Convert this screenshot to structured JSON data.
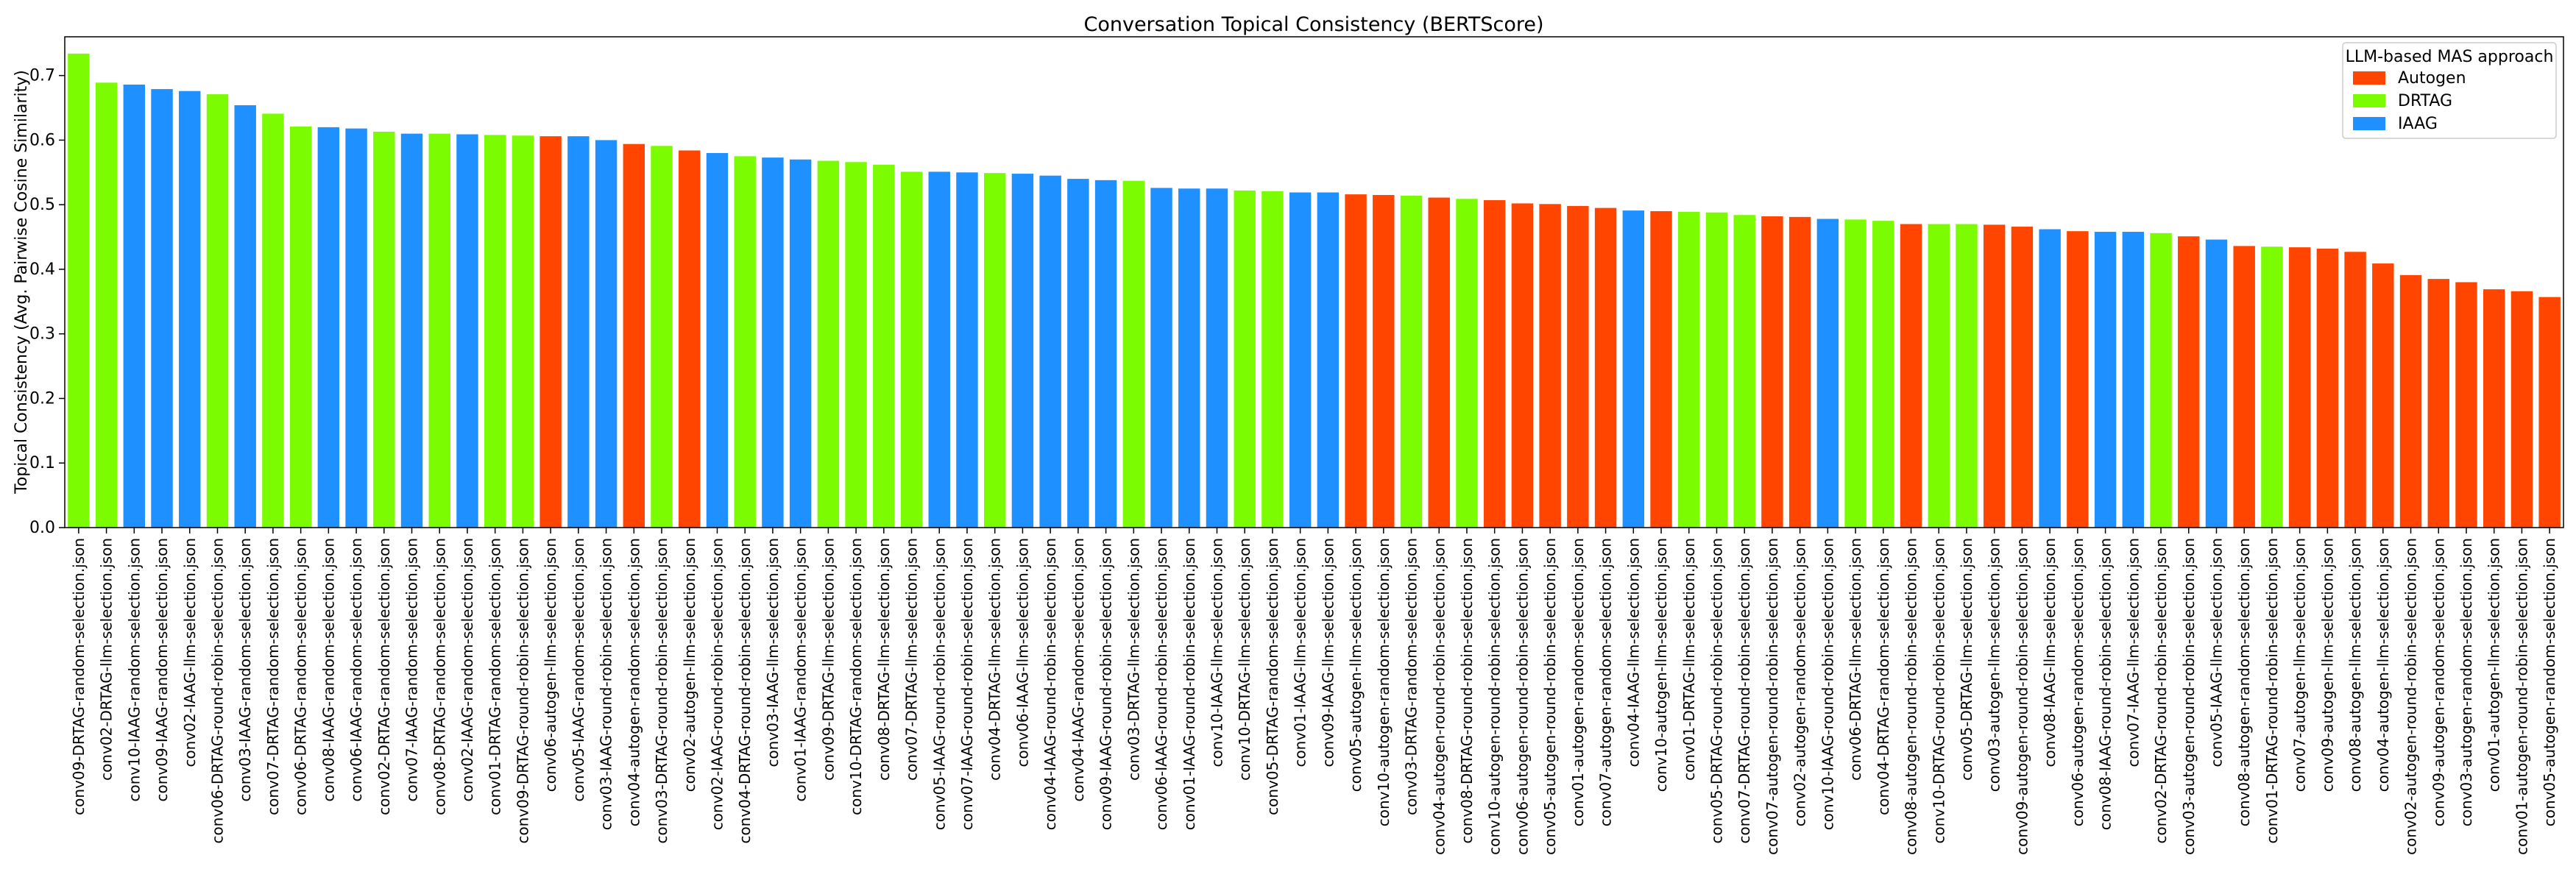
{
  "chart_data": {
    "type": "bar",
    "title": "Conversation Topical Consistency (BERTScore)",
    "xlabel": "",
    "ylabel": "Topical Consistency (Avg. Pairwise Cosine Similarity)",
    "ylim": [
      0,
      0.76
    ],
    "yticks": [
      0.0,
      0.1,
      0.2,
      0.3,
      0.4,
      0.5,
      0.6,
      0.7
    ],
    "ytick_labels": [
      "0.0",
      "0.1",
      "0.2",
      "0.3",
      "0.4",
      "0.5",
      "0.6",
      "0.7"
    ],
    "grid": false,
    "legend": {
      "title": "LLM-based MAS approach",
      "position": "top-right",
      "entries": [
        {
          "name": "Autogen",
          "color": "#FF4500"
        },
        {
          "name": "DRTAG",
          "color": "#7CFC00"
        },
        {
          "name": "IAAG",
          "color": "#1E90FF"
        }
      ]
    },
    "categories": [
      "conv09-DRTAG-random-selection.json",
      "conv02-DRTAG-llm-selection.json",
      "conv10-IAAG-random-selection.json",
      "conv09-IAAG-random-selection.json",
      "conv02-IAAG-llm-selection.json",
      "conv06-DRTAG-round-robin-selection.json",
      "conv03-IAAG-random-selection.json",
      "conv07-DRTAG-random-selection.json",
      "conv06-DRTAG-random-selection.json",
      "conv08-IAAG-random-selection.json",
      "conv06-IAAG-random-selection.json",
      "conv02-DRTAG-random-selection.json",
      "conv07-IAAG-random-selection.json",
      "conv08-DRTAG-random-selection.json",
      "conv02-IAAG-random-selection.json",
      "conv01-DRTAG-random-selection.json",
      "conv09-DRTAG-round-robin-selection.json",
      "conv06-autogen-llm-selection.json",
      "conv05-IAAG-random-selection.json",
      "conv03-IAAG-round-robin-selection.json",
      "conv04-autogen-random-selection.json",
      "conv03-DRTAG-round-robin-selection.json",
      "conv02-autogen-llm-selection.json",
      "conv02-IAAG-round-robin-selection.json",
      "conv04-DRTAG-round-robin-selection.json",
      "conv03-IAAG-llm-selection.json",
      "conv01-IAAG-random-selection.json",
      "conv09-DRTAG-llm-selection.json",
      "conv10-DRTAG-random-selection.json",
      "conv08-DRTAG-llm-selection.json",
      "conv07-DRTAG-llm-selection.json",
      "conv05-IAAG-round-robin-selection.json",
      "conv07-IAAG-round-robin-selection.json",
      "conv04-DRTAG-llm-selection.json",
      "conv06-IAAG-llm-selection.json",
      "conv04-IAAG-round-robin-selection.json",
      "conv04-IAAG-random-selection.json",
      "conv09-IAAG-round-robin-selection.json",
      "conv03-DRTAG-llm-selection.json",
      "conv06-IAAG-round-robin-selection.json",
      "conv01-IAAG-round-robin-selection.json",
      "conv10-IAAG-llm-selection.json",
      "conv10-DRTAG-llm-selection.json",
      "conv05-DRTAG-random-selection.json",
      "conv01-IAAG-llm-selection.json",
      "conv09-IAAG-llm-selection.json",
      "conv05-autogen-llm-selection.json",
      "conv10-autogen-random-selection.json",
      "conv03-DRTAG-random-selection.json",
      "conv04-autogen-round-robin-selection.json",
      "conv08-DRTAG-round-robin-selection.json",
      "conv10-autogen-round-robin-selection.json",
      "conv06-autogen-round-robin-selection.json",
      "conv05-autogen-round-robin-selection.json",
      "conv01-autogen-random-selection.json",
      "conv07-autogen-random-selection.json",
      "conv04-IAAG-llm-selection.json",
      "conv10-autogen-llm-selection.json",
      "conv01-DRTAG-llm-selection.json",
      "conv05-DRTAG-round-robin-selection.json",
      "conv07-DRTAG-round-robin-selection.json",
      "conv07-autogen-round-robin-selection.json",
      "conv02-autogen-random-selection.json",
      "conv10-IAAG-round-robin-selection.json",
      "conv06-DRTAG-llm-selection.json",
      "conv04-DRTAG-random-selection.json",
      "conv08-autogen-round-robin-selection.json",
      "conv10-DRTAG-round-robin-selection.json",
      "conv05-DRTAG-llm-selection.json",
      "conv03-autogen-llm-selection.json",
      "conv09-autogen-round-robin-selection.json",
      "conv08-IAAG-llm-selection.json",
      "conv06-autogen-random-selection.json",
      "conv08-IAAG-round-robin-selection.json",
      "conv07-IAAG-llm-selection.json",
      "conv02-DRTAG-round-robin-selection.json",
      "conv03-autogen-round-robin-selection.json",
      "conv05-IAAG-llm-selection.json",
      "conv08-autogen-random-selection.json",
      "conv01-DRTAG-round-robin-selection.json",
      "conv07-autogen-llm-selection.json",
      "conv09-autogen-llm-selection.json",
      "conv08-autogen-llm-selection.json",
      "conv04-autogen-llm-selection.json",
      "conv02-autogen-round-robin-selection.json",
      "conv09-autogen-random-selection.json",
      "conv03-autogen-random-selection.json",
      "conv01-autogen-llm-selection.json",
      "conv01-autogen-round-robin-selection.json",
      "conv05-autogen-random-selection.json"
    ],
    "values": [
      0.734,
      0.689,
      0.686,
      0.679,
      0.676,
      0.671,
      0.654,
      0.641,
      0.621,
      0.62,
      0.618,
      0.613,
      0.61,
      0.61,
      0.609,
      0.608,
      0.607,
      0.606,
      0.606,
      0.6,
      0.594,
      0.591,
      0.584,
      0.58,
      0.575,
      0.573,
      0.57,
      0.568,
      0.566,
      0.562,
      0.551,
      0.551,
      0.55,
      0.549,
      0.548,
      0.545,
      0.54,
      0.538,
      0.537,
      0.526,
      0.525,
      0.525,
      0.522,
      0.521,
      0.519,
      0.519,
      0.516,
      0.515,
      0.514,
      0.511,
      0.509,
      0.507,
      0.502,
      0.501,
      0.498,
      0.495,
      0.491,
      0.49,
      0.489,
      0.488,
      0.484,
      0.482,
      0.481,
      0.478,
      0.477,
      0.475,
      0.47,
      0.47,
      0.47,
      0.469,
      0.466,
      0.462,
      0.459,
      0.458,
      0.458,
      0.456,
      0.451,
      0.446,
      0.436,
      0.435,
      0.434,
      0.432,
      0.427,
      0.409,
      0.391,
      0.385,
      0.38,
      0.369,
      0.366,
      0.357
    ],
    "series_labels": [
      "DRTAG",
      "DRTAG",
      "IAAG",
      "IAAG",
      "IAAG",
      "DRTAG",
      "IAAG",
      "DRTAG",
      "DRTAG",
      "IAAG",
      "IAAG",
      "DRTAG",
      "IAAG",
      "DRTAG",
      "IAAG",
      "DRTAG",
      "DRTAG",
      "Autogen",
      "IAAG",
      "IAAG",
      "Autogen",
      "DRTAG",
      "Autogen",
      "IAAG",
      "DRTAG",
      "IAAG",
      "IAAG",
      "DRTAG",
      "DRTAG",
      "DRTAG",
      "DRTAG",
      "IAAG",
      "IAAG",
      "DRTAG",
      "IAAG",
      "IAAG",
      "IAAG",
      "IAAG",
      "DRTAG",
      "IAAG",
      "IAAG",
      "IAAG",
      "DRTAG",
      "DRTAG",
      "IAAG",
      "IAAG",
      "Autogen",
      "Autogen",
      "DRTAG",
      "Autogen",
      "DRTAG",
      "Autogen",
      "Autogen",
      "Autogen",
      "Autogen",
      "Autogen",
      "IAAG",
      "Autogen",
      "DRTAG",
      "DRTAG",
      "DRTAG",
      "Autogen",
      "Autogen",
      "IAAG",
      "DRTAG",
      "DRTAG",
      "Autogen",
      "DRTAG",
      "DRTAG",
      "Autogen",
      "Autogen",
      "IAAG",
      "Autogen",
      "IAAG",
      "IAAG",
      "DRTAG",
      "Autogen",
      "IAAG",
      "Autogen",
      "DRTAG",
      "Autogen",
      "Autogen",
      "Autogen",
      "Autogen",
      "Autogen",
      "Autogen",
      "Autogen",
      "Autogen",
      "Autogen",
      "Autogen"
    ]
  }
}
